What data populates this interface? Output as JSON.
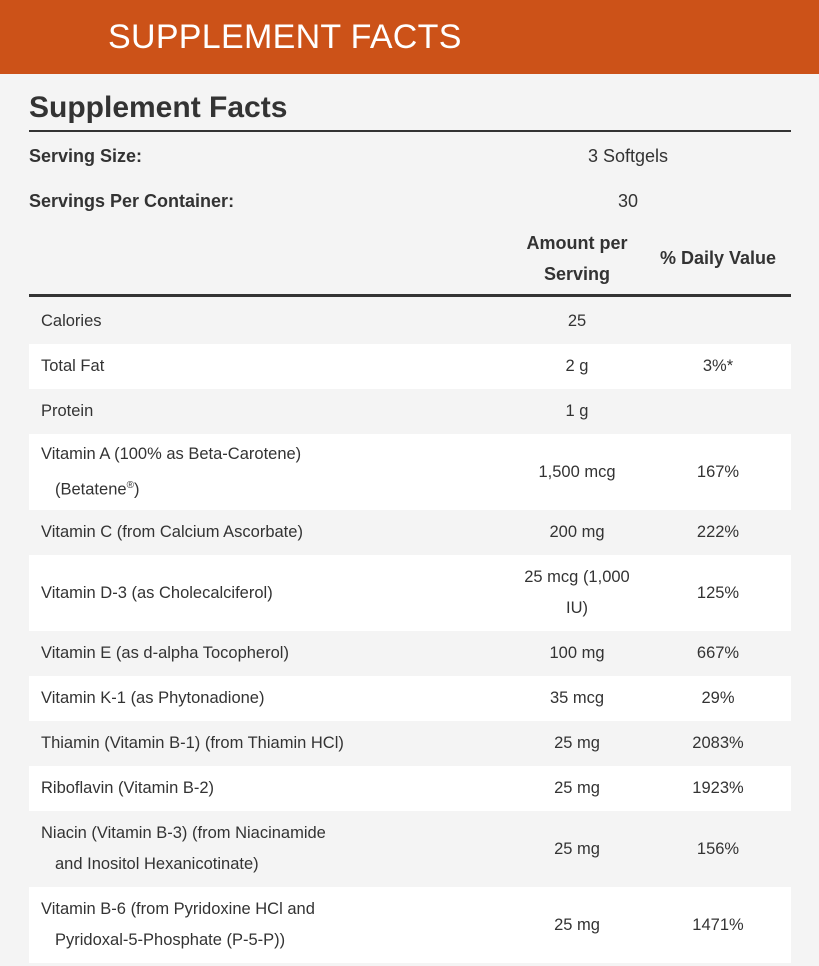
{
  "banner": {
    "title": "SUPPLEMENT FACTS"
  },
  "panel": {
    "title": "Supplement Facts",
    "serving_size_label": "Serving Size:",
    "serving_size_value": "3 Softgels",
    "servings_label": "Servings Per Container:",
    "servings_value": "30",
    "col_amount_line1": "Amount per",
    "col_amount_line2": "Serving",
    "col_dv": "% Daily Value"
  },
  "rows": [
    {
      "name": "Calories",
      "amount": "25",
      "dv": ""
    },
    {
      "name": "Total Fat",
      "amount": "2 g",
      "dv": "3%*"
    },
    {
      "name": "Protein",
      "amount": "1 g",
      "dv": ""
    },
    {
      "name": "Vitamin A (100% as Beta-Carotene)",
      "name2": "(Betatene",
      "name2_sup": "®",
      "name2_end": ")",
      "amount": "1,500 mcg",
      "dv": "167%"
    },
    {
      "name": "Vitamin C (from Calcium Ascorbate)",
      "amount": "200 mg",
      "dv": "222%"
    },
    {
      "name": "Vitamin D-3 (as Cholecalciferol)",
      "amount": "25 mcg (1,000",
      "amount2": "IU)",
      "dv": "125%"
    },
    {
      "name": "Vitamin E (as d-alpha Tocopherol)",
      "amount": "100 mg",
      "dv": "667%"
    },
    {
      "name": "Vitamin K-1 (as Phytonadione)",
      "amount": "35 mcg",
      "dv": "29%"
    },
    {
      "name": "Thiamin (Vitamin B-1) (from Thiamin HCl)",
      "amount": "25 mg",
      "dv": "2083%"
    },
    {
      "name": "Riboflavin (Vitamin B-2)",
      "amount": "25 mg",
      "dv": "1923%"
    },
    {
      "name": "Niacin (Vitamin B-3) (from Niacinamide",
      "name2": "and Inositol Hexanicotinate)",
      "amount": "25 mg",
      "dv": "156%"
    },
    {
      "name": "Vitamin B-6 (from Pyridoxine HCl and",
      "name2": "Pyridoxal-5-Phosphate (P-5-P))",
      "amount": "25 mg",
      "dv": "1471%"
    }
  ],
  "colors": {
    "banner": "#cc5218",
    "stripe": "#ffffff",
    "background": "#f4f4f4",
    "text": "#333333"
  }
}
